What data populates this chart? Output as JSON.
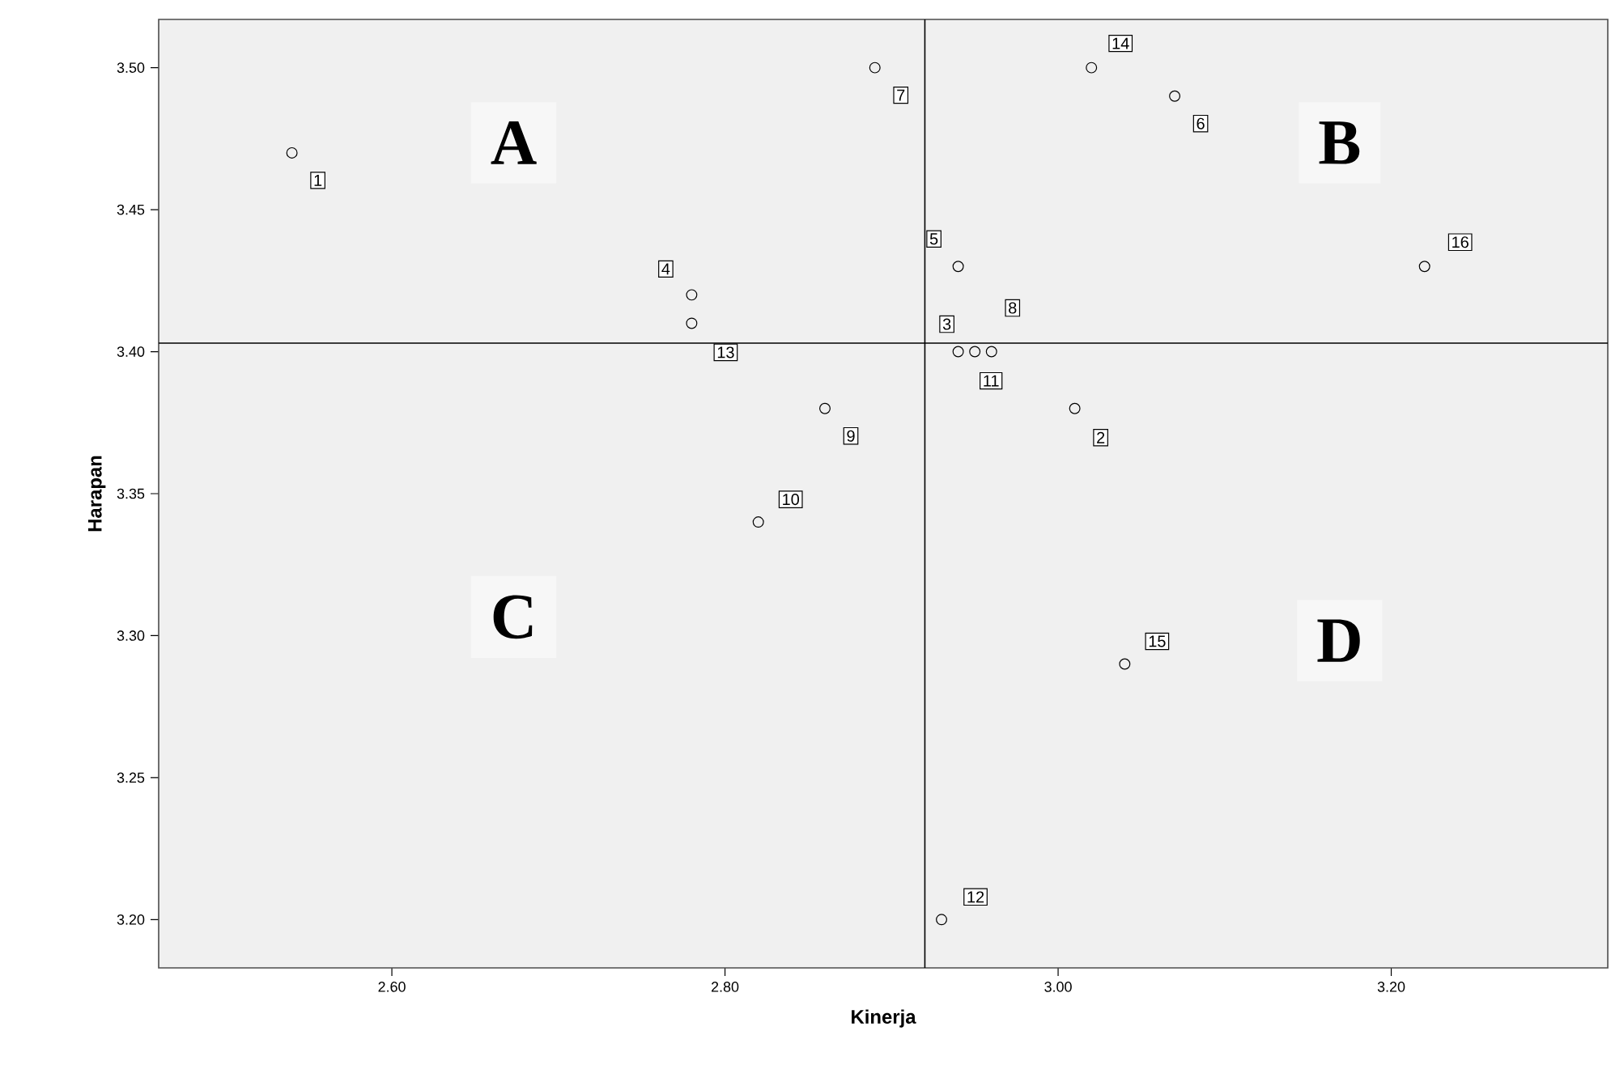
{
  "chart_data": {
    "type": "scatter",
    "xlabel": "Kinerja",
    "ylabel": "Harapan",
    "xlim": [
      2.46,
      3.33
    ],
    "ylim": [
      3.183,
      3.517
    ],
    "xticks": [
      {
        "value": 2.6,
        "label": "2.60"
      },
      {
        "value": 2.8,
        "label": "2.80"
      },
      {
        "value": 3.0,
        "label": "3.00"
      },
      {
        "value": 3.2,
        "label": "3.20"
      }
    ],
    "yticks": [
      {
        "value": 3.2,
        "label": "3.20"
      },
      {
        "value": 3.25,
        "label": "3.25"
      },
      {
        "value": 3.3,
        "label": "3.30"
      },
      {
        "value": 3.35,
        "label": "3.35"
      },
      {
        "value": 3.4,
        "label": "3.40"
      },
      {
        "value": 3.45,
        "label": "3.45"
      },
      {
        "value": 3.5,
        "label": "3.50"
      }
    ],
    "marker": "circle",
    "series": [
      {
        "color": "#000000",
        "x": [
          2.54,
          3.01,
          2.94,
          2.78,
          2.94,
          3.07,
          2.89,
          2.96,
          2.86,
          2.82,
          2.95,
          2.93,
          2.78,
          3.02,
          3.04,
          3.22
        ],
        "values": [
          3.47,
          3.38,
          3.4,
          3.42,
          3.43,
          3.49,
          3.5,
          3.4,
          3.38,
          3.34,
          3.4,
          3.2,
          3.41,
          3.5,
          3.29,
          3.43
        ]
      }
    ],
    "ref_lines": [
      {
        "axis": "x",
        "value": 2.92,
        "color": "#000000"
      },
      {
        "axis": "y",
        "value": 3.403,
        "color": "#000000"
      }
    ],
    "annotations": [
      "A",
      "B",
      "C",
      "D",
      {
        "text": "1",
        "x": 2.54,
        "y": 3.47
      },
      {
        "text": "2",
        "x": 3.01,
        "y": 3.38
      },
      {
        "text": "3",
        "x": 2.94,
        "y": 3.4
      },
      {
        "text": "4",
        "x": 2.78,
        "y": 3.42
      },
      {
        "text": "5",
        "x": 2.94,
        "y": 3.43
      },
      {
        "text": "6",
        "x": 3.07,
        "y": 3.49
      },
      {
        "text": "7",
        "x": 2.89,
        "y": 3.5
      },
      {
        "text": "8",
        "x": 2.96,
        "y": 3.4
      },
      {
        "text": "9",
        "x": 2.86,
        "y": 3.38
      },
      {
        "text": "10",
        "x": 2.82,
        "y": 3.34
      },
      {
        "text": "11",
        "x": 2.95,
        "y": 3.4
      },
      {
        "text": "12",
        "x": 2.93,
        "y": 3.2
      },
      {
        "text": "13",
        "x": 2.78,
        "y": 3.41
      },
      {
        "text": "14",
        "x": 3.02,
        "y": 3.5
      },
      {
        "text": "15",
        "x": 3.04,
        "y": 3.29
      },
      {
        "text": "16",
        "x": 3.22,
        "y": 3.43
      }
    ]
  }
}
